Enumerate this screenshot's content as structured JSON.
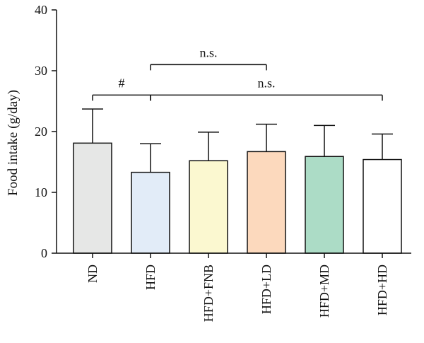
{
  "chart_data": {
    "type": "bar",
    "categories": [
      "ND",
      "HFD",
      "HFD+FNB",
      "HFD+LD",
      "HFD+MD",
      "HFD+HD"
    ],
    "values": [
      18.1,
      13.3,
      15.2,
      16.7,
      15.9,
      15.4
    ],
    "errors": [
      5.6,
      4.7,
      4.7,
      4.5,
      5.1,
      4.2
    ],
    "colors": [
      "#e6e7e6",
      "#e2ecf8",
      "#fbf8d0",
      "#fcd9bd",
      "#acdcc6",
      "#ffffff"
    ],
    "xlabel": "",
    "ylabel": "Food intake (g/day)",
    "ylim": [
      0,
      40
    ],
    "yticks": [
      0,
      10,
      20,
      30,
      40
    ],
    "annotations": [
      {
        "text": "#",
        "from": 0,
        "to": 1,
        "y": 26.0
      },
      {
        "text": "n.s.",
        "from": 1,
        "to": 3,
        "y": 31.0
      },
      {
        "text": "n.s.",
        "from": 1,
        "to": 5,
        "y": 26.0
      }
    ]
  }
}
